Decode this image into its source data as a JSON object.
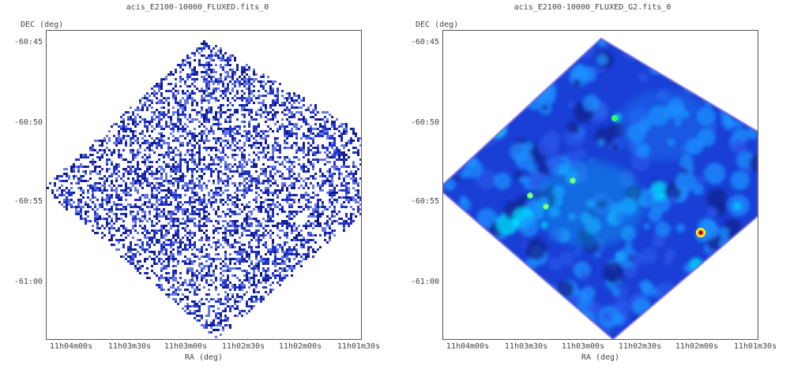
{
  "panels": [
    {
      "title": "acis_E2100-10000_FLUXED.fits_0",
      "ylabel": "DEC (deg)",
      "xlabel": "RA (deg)",
      "yticks": [
        "-60:45",
        "-60:50",
        "-60:55",
        "-61:00"
      ],
      "xticks": [
        "11h04m00s",
        "11h03m30s",
        "11h03m00s",
        "11h02m30s",
        "11h02m00s",
        "11h01m30s"
      ]
    },
    {
      "title": "acis_E2100-10000_FLUXED_G2.fits_0",
      "ylabel": "DEC (deg)",
      "xlabel": "RA (deg)",
      "yticks": [
        "-60:45",
        "-60:50",
        "-60:55",
        "-61:00"
      ],
      "xticks": [
        "11h04m00s",
        "11h03m30s",
        "11h03m00s",
        "11h02m30s",
        "11h02m00s",
        "11h01m30s"
      ]
    }
  ],
  "colors": {
    "raw_pixels": "#2233cc",
    "smoothed_background": "#1a3fd6",
    "smoothed_mid": "#1e90ff",
    "smoothed_bright": "#00e5ff",
    "source_core_red": "#ff2a00",
    "source_ring_yellow": "#ffff00",
    "source_green": "#33ff66"
  }
}
